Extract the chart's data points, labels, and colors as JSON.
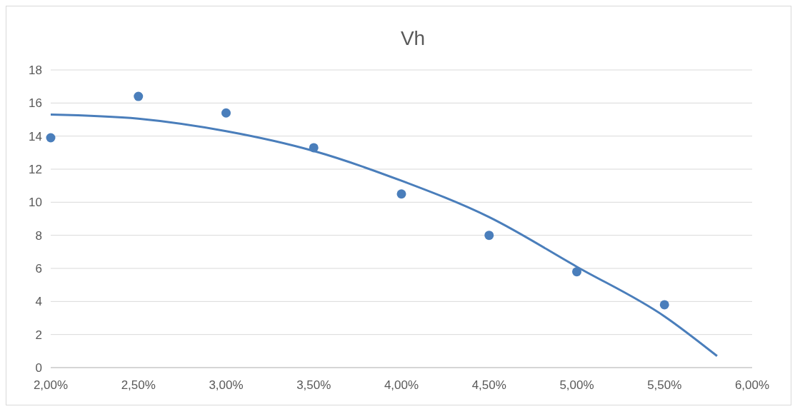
{
  "chart_data": {
    "type": "scatter",
    "title": "Vh",
    "xlim": [
      2,
      6
    ],
    "xticks": [
      {
        "value": 2,
        "label": "2,00%"
      },
      {
        "value": 2.5,
        "label": "2,50%"
      },
      {
        "value": 3,
        "label": "3,00%"
      },
      {
        "value": 3.5,
        "label": "3,50%"
      },
      {
        "value": 4,
        "label": "4,00%"
      },
      {
        "value": 4.5,
        "label": "4,50%"
      },
      {
        "value": 5,
        "label": "5,00%"
      },
      {
        "value": 5.5,
        "label": "5,50%"
      },
      {
        "value": 6,
        "label": "6,00%"
      }
    ],
    "ylim": [
      0,
      18
    ],
    "yticks": [
      0,
      2,
      4,
      6,
      8,
      10,
      12,
      14,
      16,
      18
    ],
    "grid": "y",
    "series": [
      {
        "color": "#4a7ebb",
        "marker": "circle",
        "x": [
          2,
          2.5,
          3,
          3.5,
          4,
          4.5,
          5,
          5.5
        ],
        "values": [
          13.9,
          16.4,
          15.4,
          13.3,
          10.5,
          8,
          5.8,
          3.8
        ]
      },
      {
        "type": "line",
        "color": "#4a7ebb",
        "marker": "none",
        "line_style": "solid",
        "x": [
          2,
          2.5,
          3,
          3.5,
          4,
          4.5,
          5,
          5.5,
          5.8
        ],
        "values": [
          15.3,
          15.05,
          14.3,
          13.1,
          11.3,
          9.1,
          6.1,
          3.1,
          0.7
        ]
      }
    ]
  }
}
